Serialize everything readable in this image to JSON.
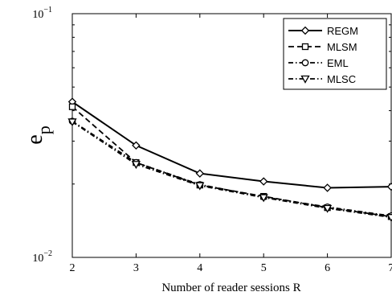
{
  "chart_data": {
    "type": "line",
    "xlabel": "Number of reader sessions R",
    "ylabel_main": "e",
    "ylabel_sub": "p",
    "x": [
      2,
      3,
      4,
      5,
      6,
      7
    ],
    "xlim": [
      2,
      7
    ],
    "ylim": [
      0.01,
      0.1
    ],
    "yscale": "log",
    "xticks": [
      "2",
      "3",
      "4",
      "5",
      "6",
      "7"
    ],
    "yticks": [
      {
        "value": 0.1,
        "base": "10",
        "exp": "−1"
      },
      {
        "value": 0.01,
        "base": "10",
        "exp": "−2"
      }
    ],
    "grid": false,
    "legend_position": "top-right",
    "series": [
      {
        "name": "REGM",
        "values": [
          0.0435,
          0.0288,
          0.0221,
          0.0205,
          0.0193,
          0.0195
        ],
        "dash": "solid",
        "marker": "diamond"
      },
      {
        "name": "MLSM",
        "values": [
          0.0415,
          0.0245,
          0.0198,
          0.0178,
          0.016,
          0.0147
        ],
        "dash": "dashed",
        "marker": "square"
      },
      {
        "name": "EML",
        "values": [
          0.0362,
          0.0245,
          0.0199,
          0.0177,
          0.0161,
          0.0148
        ],
        "dash": "dashdot",
        "marker": "circle"
      },
      {
        "name": "MLSC",
        "values": [
          0.036,
          0.0241,
          0.0197,
          0.0176,
          0.0159,
          0.0146
        ],
        "dash": "dashdot",
        "marker": "triangle-down"
      }
    ]
  }
}
